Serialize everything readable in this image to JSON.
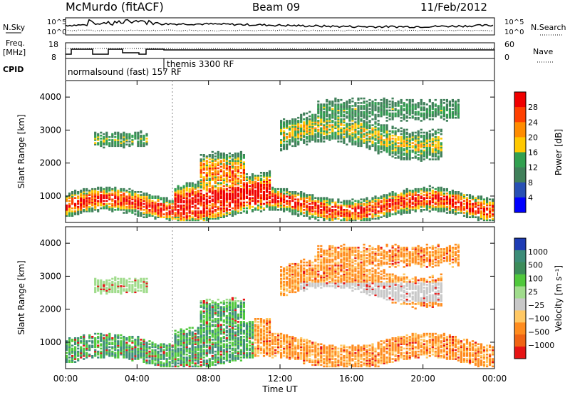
{
  "header": {
    "station": "McMurdo (fitACF)",
    "beam": "Beam 09",
    "date": "11/Feb/2012"
  },
  "noise_panel": {
    "left_label": "N.Sky",
    "right_label": "N.Search",
    "y_ticks": [
      "10^5",
      "10^0"
    ]
  },
  "freq_panel": {
    "left_label_1": "Freq.",
    "left_label_2": "[MHz]",
    "right_label": "Nave",
    "left_ticks": [
      "18",
      "8"
    ],
    "right_ticks": [
      "60",
      "0"
    ]
  },
  "cpid_panel": {
    "label": "CPID",
    "modes": [
      "normalsound (fast) 157 RF",
      "themis 3300 RF"
    ]
  },
  "chart_data": [
    {
      "type": "heatmap",
      "name": "power",
      "ylabel": "Slant Range [km]",
      "xlabel": "",
      "xlim": [
        0,
        24
      ],
      "ylim": [
        200,
        4500
      ],
      "y_ticks": [
        "1000",
        "2000",
        "3000",
        "4000"
      ],
      "colorbar": {
        "label": "Power [dB]",
        "ticks": [
          "28",
          "24",
          "20",
          "16",
          "12",
          "8",
          "4"
        ],
        "colors": [
          "#f00000",
          "#ff4000",
          "#ff8c00",
          "#ffc800",
          "#32a050",
          "#40805a",
          "#2850b4",
          "#0000ff"
        ]
      }
    },
    {
      "type": "heatmap",
      "name": "velocity",
      "ylabel": "Slant Range [km]",
      "xlabel": "Time UT",
      "xlim": [
        0,
        24
      ],
      "ylim": [
        200,
        4500
      ],
      "y_ticks": [
        "1000",
        "2000",
        "3000",
        "4000"
      ],
      "x_ticks": [
        "00:00",
        "04:00",
        "08:00",
        "12:00",
        "16:00",
        "20:00",
        "00:00"
      ],
      "colorbar": {
        "label": "Velocity [m s⁻¹]",
        "ticks": [
          "1000",
          "500",
          "100",
          "25",
          "−25",
          "−100",
          "−500",
          "−1000"
        ],
        "colors": [
          "#1e3cb4",
          "#3c8c78",
          "#3c8c5a",
          "#50c83c",
          "#a0dc8c",
          "#c8c8c8",
          "#ffc864",
          "#ff8c1e",
          "#f06414",
          "#e61414"
        ]
      }
    }
  ]
}
